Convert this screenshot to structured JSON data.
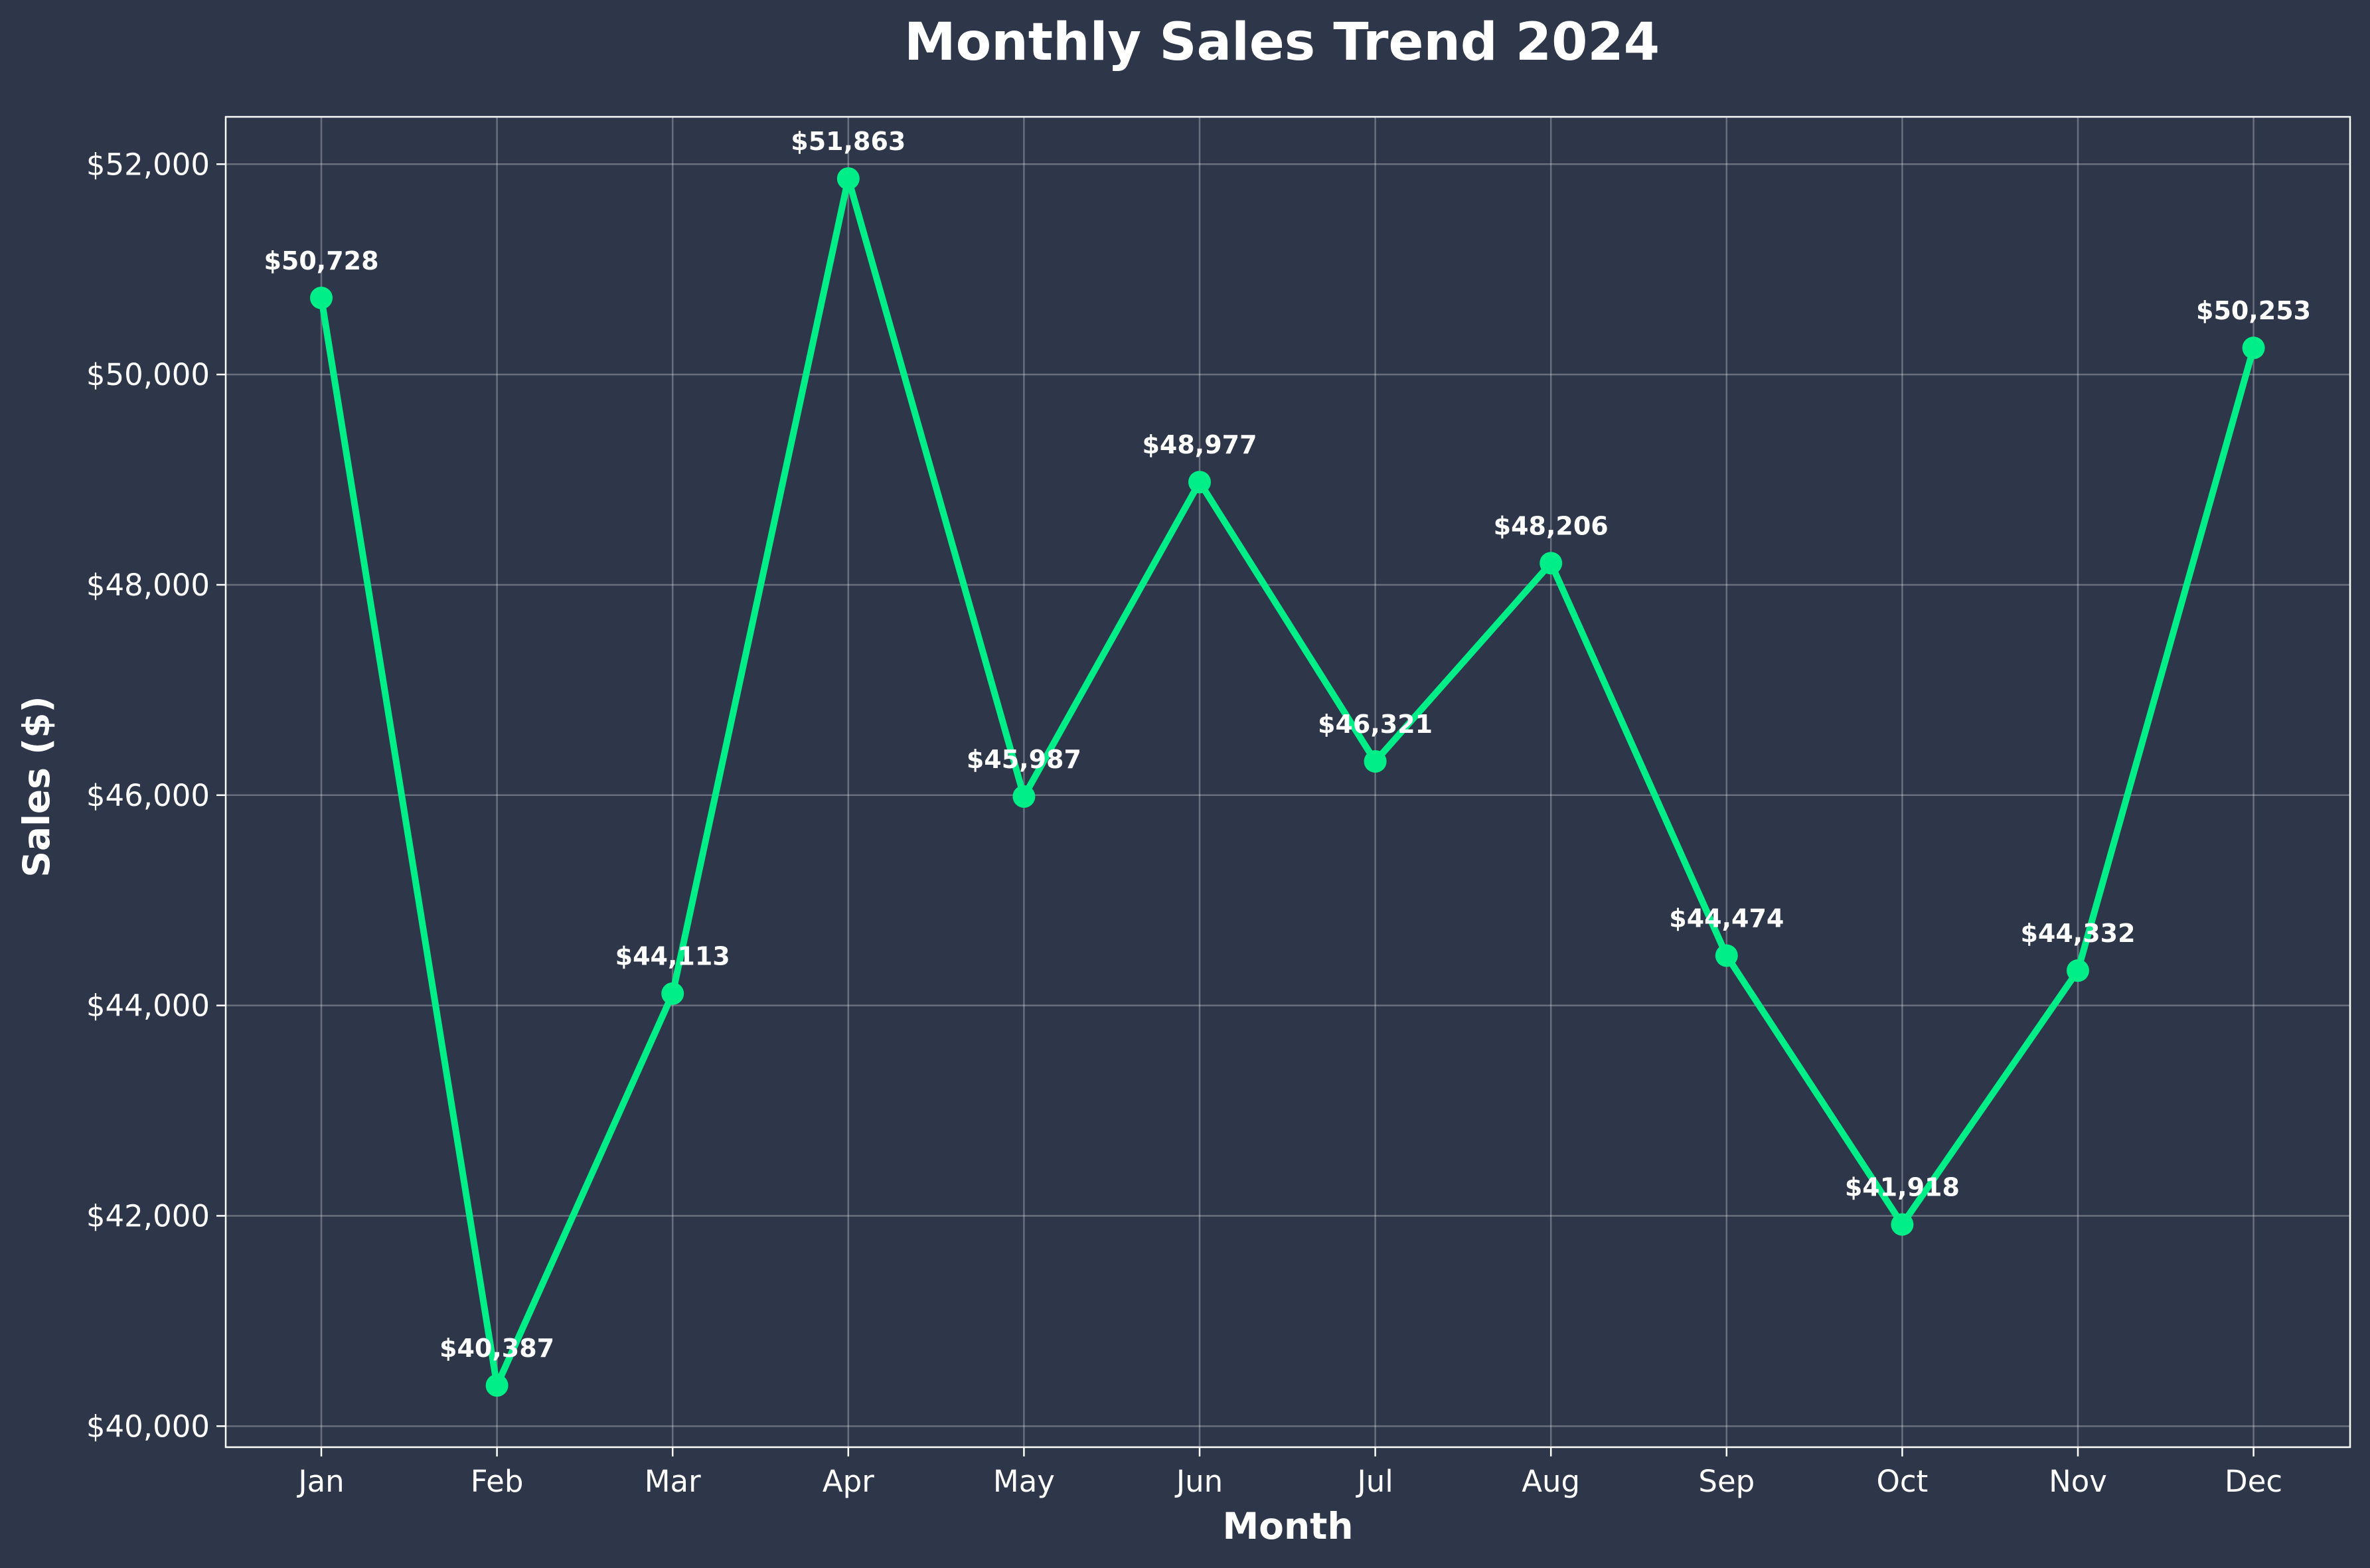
{
  "chart_data": {
    "type": "line",
    "title": "Monthly Sales Trend 2024",
    "xlabel": "Month",
    "ylabel": "Sales ($)",
    "categories": [
      "Jan",
      "Feb",
      "Mar",
      "Apr",
      "May",
      "Jun",
      "Jul",
      "Aug",
      "Sep",
      "Oct",
      "Nov",
      "Dec"
    ],
    "series": [
      {
        "values": [
          50728,
          40387,
          44113,
          51863,
          45987,
          48977,
          46321,
          48206,
          44474,
          41918,
          44332,
          50253
        ],
        "labels": [
          "$50,728",
          "$40,387",
          "$44,113",
          "$51,863",
          "$45,987",
          "$48,977",
          "$46,321",
          "$48,206",
          "$44,474",
          "$41,918",
          "$44,332",
          "$50,253"
        ]
      }
    ],
    "ylim": [
      39800,
      52450
    ],
    "yticks": [
      40000,
      42000,
      44000,
      46000,
      48000,
      50000,
      52000
    ],
    "ytick_labels": [
      "$40,000",
      "$42,000",
      "$44,000",
      "$46,000",
      "$48,000",
      "$50,000",
      "$52,000"
    ],
    "grid": true,
    "colors": {
      "background": "#2e3749",
      "line": "#00ee88",
      "text": "#ffffff",
      "grid": "#ffffff"
    }
  }
}
